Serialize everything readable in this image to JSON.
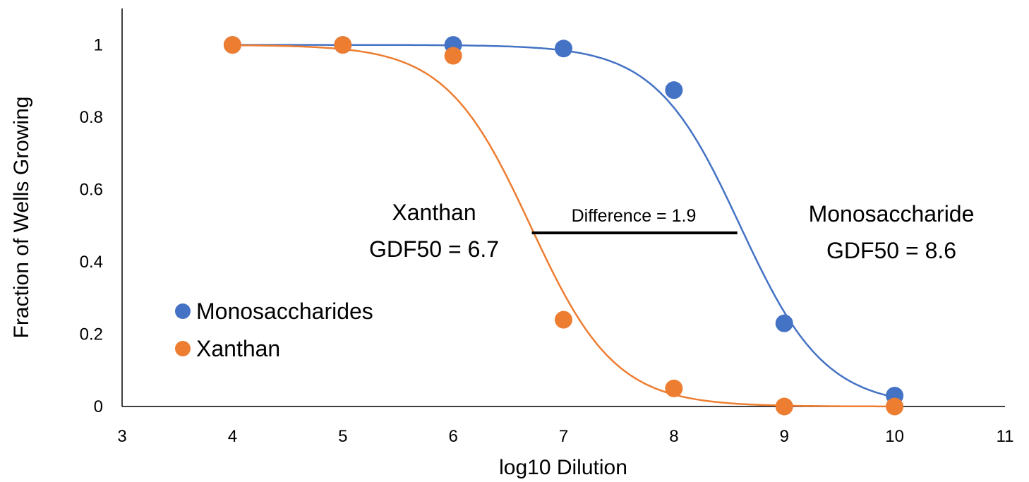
{
  "chart_data": {
    "type": "scatter",
    "title": "",
    "xlabel": "log10 Dilution",
    "ylabel": "Fraction of Wells Growing",
    "xlim": [
      3,
      11
    ],
    "ylim": [
      0,
      1.05
    ],
    "x_ticks": [
      3,
      4,
      5,
      6,
      7,
      8,
      9,
      10,
      11
    ],
    "y_ticks": [
      0,
      0.2,
      0.4,
      0.6,
      0.8,
      1
    ],
    "grid": false,
    "legend": "bottom-left",
    "series": [
      {
        "name": "Monosaccharides",
        "color": "#4472C4",
        "points": [
          [
            4,
            1.0
          ],
          [
            5,
            1.0
          ],
          [
            6,
            1.0
          ],
          [
            7,
            0.99
          ],
          [
            8,
            0.875
          ],
          [
            9,
            0.23
          ],
          [
            10,
            0.03
          ]
        ],
        "fit_midpoint": 8.6
      },
      {
        "name": "Xanthan",
        "color": "#ED7D31",
        "points": [
          [
            4,
            1.0
          ],
          [
            5,
            1.0
          ],
          [
            6,
            0.97
          ],
          [
            7,
            0.24
          ],
          [
            8,
            0.05
          ],
          [
            9,
            0.0
          ],
          [
            10,
            0.0
          ]
        ],
        "fit_midpoint": 6.7
      }
    ],
    "annotations": {
      "xanthan_name": "Xanthan",
      "xanthan_gdf": "GDF50 = 6.7",
      "mono_name": "Monosaccharide",
      "mono_gdf": "GDF50 = 8.6",
      "difference": "Difference = 1.9",
      "difference_y": 0.48
    }
  }
}
